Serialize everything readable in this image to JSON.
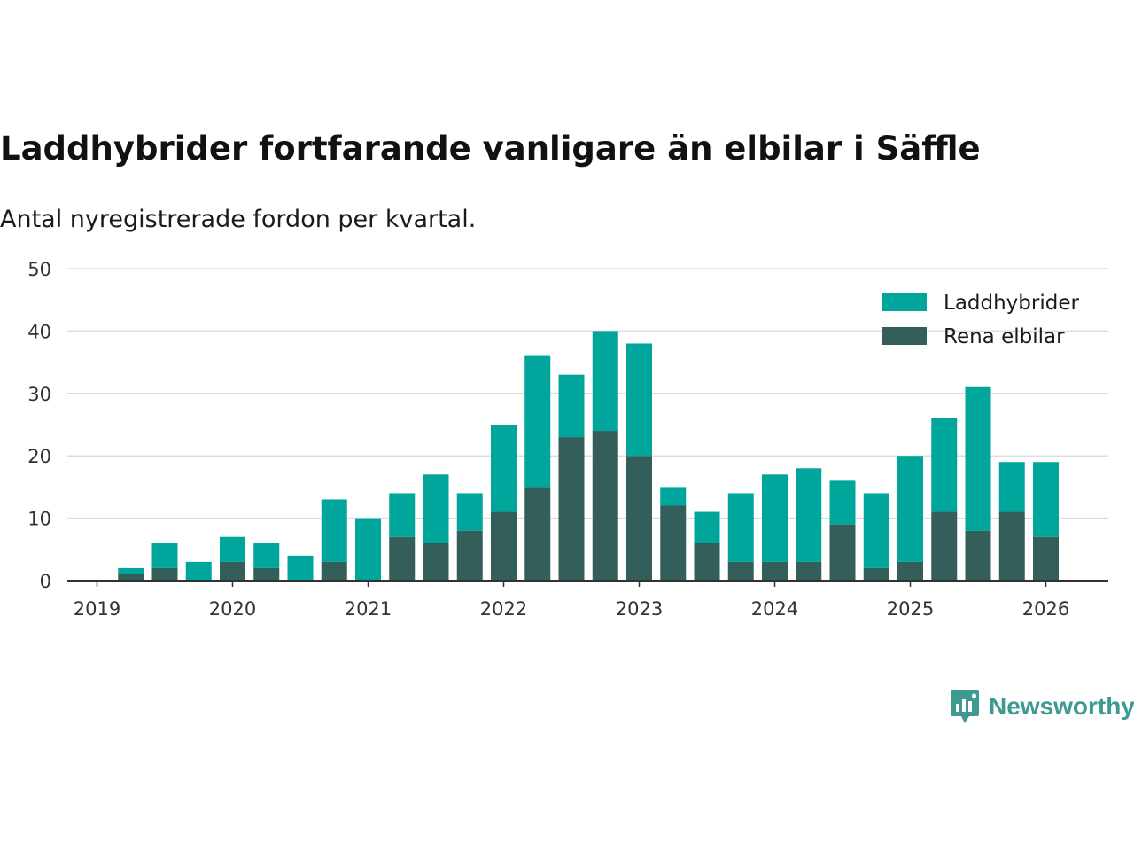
{
  "title": "Laddhybrider fortfarande vanligare än elbilar i Säffle",
  "subtitle": "Antal nyregistrerade fordon per kvartal.",
  "brand": "Newsworthy",
  "colors": {
    "hybrid": "#00a59b",
    "electric": "#335e5a",
    "grid": "#dcdcdc",
    "axis": "#333333",
    "brand": "#3d9a91"
  },
  "chart_data": {
    "type": "bar",
    "stacked": true,
    "title": "Laddhybrider fortfarande vanligare än elbilar i Säffle",
    "subtitle": "Antal nyregistrerade fordon per kvartal.",
    "xlabel": "",
    "ylabel": "",
    "ylim": [
      0,
      50
    ],
    "yticks": [
      0,
      10,
      20,
      30,
      40,
      50
    ],
    "xticks": [
      "2019",
      "2020",
      "2021",
      "2022",
      "2023",
      "2024",
      "2025",
      "2026"
    ],
    "legend_position": "top-right",
    "grid": true,
    "categories": [
      "2019Q1",
      "2019Q2",
      "2019Q3",
      "2019Q4",
      "2020Q1",
      "2020Q2",
      "2020Q3",
      "2020Q4",
      "2021Q1",
      "2021Q2",
      "2021Q3",
      "2021Q4",
      "2022Q1",
      "2022Q2",
      "2022Q3",
      "2022Q4",
      "2023Q1",
      "2023Q2",
      "2023Q3",
      "2023Q4",
      "2024Q1",
      "2024Q2",
      "2024Q3",
      "2024Q4",
      "2025Q1",
      "2025Q2",
      "2025Q3",
      "2025Q4"
    ],
    "series": [
      {
        "name": "Laddhybrider",
        "values": [
          1,
          4,
          3,
          4,
          4,
          4,
          10,
          10,
          7,
          11,
          6,
          14,
          21,
          10,
          16,
          18,
          3,
          5,
          11,
          14,
          15,
          7,
          12,
          17,
          15,
          23,
          8,
          12
        ]
      },
      {
        "name": "Rena elbilar",
        "values": [
          1,
          2,
          0,
          3,
          2,
          0,
          3,
          0,
          7,
          6,
          8,
          11,
          15,
          23,
          24,
          20,
          12,
          6,
          3,
          3,
          3,
          9,
          2,
          3,
          11,
          8,
          11,
          7
        ]
      }
    ],
    "totals": [
      2,
      6,
      3,
      7,
      6,
      4,
      13,
      10,
      14,
      17,
      14,
      25,
      36,
      33,
      40,
      38,
      15,
      11,
      14,
      17,
      18,
      16,
      14,
      20,
      26,
      31,
      19,
      19
    ]
  }
}
